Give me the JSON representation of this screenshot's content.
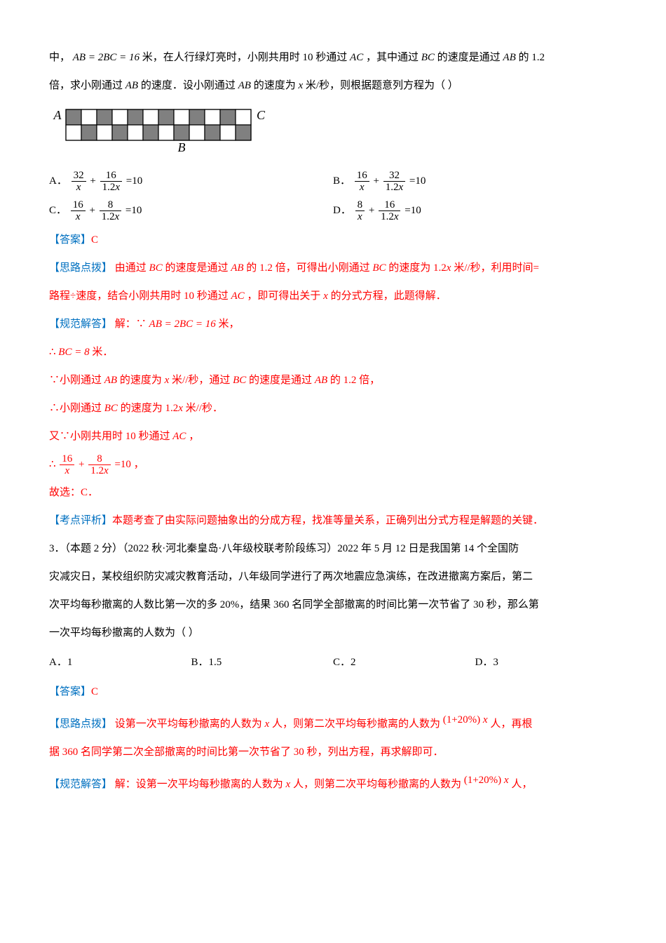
{
  "q2_intro": {
    "line1_pre": "中，",
    "line1_eq": "AB = 2BC = 16",
    "line1_unit": "米，在人行绿灯亮时，小刚共用时 10 秒通过",
    "line1_ac": "AC",
    "line1_mid": "，其中通过",
    "line1_bc": "BC",
    "line1_mid2": "的速度是通过",
    "line1_ab": "AB",
    "line1_mid3": "的",
    "line1_mult": "1.2",
    "line2_pre": "倍，求小刚通过",
    "line2_ab": "AB",
    "line2_mid": "的速度．设小刚通过",
    "line2_ab2": "AB",
    "line2_mid2": "的速度为",
    "line2_x": "x",
    "line2_unit": "米/秒，则根据题意列方程为（          ）"
  },
  "grid": {
    "cols": 12,
    "rows": 2,
    "cell": 22,
    "stroke": "#000000",
    "shaded": "#808080",
    "plain": "#ffffff",
    "b_col": 7,
    "labelA": "A",
    "labelB": "B",
    "labelC": "C",
    "shaded_cells": [
      [
        0,
        0
      ],
      [
        0,
        2
      ],
      [
        0,
        4
      ],
      [
        0,
        6
      ],
      [
        0,
        8
      ],
      [
        0,
        10
      ],
      [
        1,
        1
      ],
      [
        1,
        3
      ],
      [
        1,
        5
      ],
      [
        1,
        7
      ],
      [
        1,
        9
      ],
      [
        1,
        11
      ]
    ]
  },
  "choices2": {
    "A": {
      "label": "A．",
      "n1": "32",
      "d1": "x",
      "op": "+",
      "n2": "16",
      "d2": "1.2x",
      "eq": "=10"
    },
    "B": {
      "label": "B．",
      "n1": "16",
      "d1": "x",
      "op": "+",
      "n2": "32",
      "d2": "1.2x",
      "eq": "=10"
    },
    "C": {
      "label": "C．",
      "n1": "16",
      "d1": "x",
      "op": "+",
      "n2": "8",
      "d2": "1.2x",
      "eq": "=10"
    },
    "D": {
      "label": "D．",
      "n1": "8",
      "d1": "x",
      "op": "+",
      "n2": "16",
      "d2": "1.2x",
      "eq": "=10"
    }
  },
  "ans2": {
    "ans_label": "【答案】",
    "ans_val": "C",
    "hint_label": "【思路点拨】",
    "hint1_pre": "由通过",
    "hint1_bc": "BC",
    "hint1_mid": "的速度是通过",
    "hint1_ab": "AB",
    "hint1_mid2": "的",
    "hint1_mult": "1.2",
    "hint1_mid3": "倍，可得出小刚通过",
    "hint1_bc2": "BC",
    "hint1_mid4": "的速度为",
    "hint1_spd": "1.2x",
    "hint1_unit": "米//秒，利用时间=",
    "hint2": "路程÷速度，结合小刚共用时 10 秒通过",
    "hint2_ac": "AC",
    "hint2_mid": "，即可得出关于",
    "hint2_x": " x ",
    "hint2_end": "的分式方程，此题得解．",
    "sol_label": "【规范解答】",
    "sol1_pre": "解：∵",
    "sol1_eq": " AB = 2BC = 16 ",
    "sol1_unit": "米，",
    "sol2_pre": "∴",
    "sol2_eq": "BC = 8 ",
    "sol2_unit": "米．",
    "sol3_pre": "∵小刚通过",
    "sol3_ab": "AB",
    "sol3_mid": "的速度为",
    "sol3_x": " x ",
    "sol3_unit": "米//秒，通过",
    "sol3_bc": "BC",
    "sol3_mid2": "的速度是通过",
    "sol3_ab2": "AB",
    "sol3_mid3": "的",
    "sol3_mult": "1.2",
    "sol3_end": "倍，",
    "sol4_pre": "∴小刚通过",
    "sol4_bc": "BC",
    "sol4_mid": "的速度为",
    "sol4_spd": "1.2x ",
    "sol4_unit": "米//秒．",
    "sol5_pre": "又∵小刚共用时 10 秒通过",
    "sol5_ac": "AC",
    "sol5_end": "，",
    "sol6_pre": "∴",
    "sol6_n1": "16",
    "sol6_d1": "x",
    "sol6_op": "+",
    "sol6_n2": "8",
    "sol6_d2": "1.2x",
    "sol6_eq": "=10",
    "sol6_comma": " ，",
    "sol7": "故选：C．",
    "review_label": "【考点评析】",
    "review": "本题考查了由实际问题抽象出的分成方程，找准等量关系，正确列出分式方程是解题的关键．"
  },
  "q3": {
    "stem_l1": "3．（本题 2 分）（2022 秋·河北秦皇岛·八年级校联考阶段练习）2022 年 5 月 12 日是我国第 14 个全国防",
    "stem_l2": "灾减灾日，某校组织防灾减灾教育活动，八年级同学进行了两次地震应急演练，在改进撤离方案后，第二",
    "stem_l3": "次平均每秒撤离的人数比第一次的多 20%，结果 360 名同学全部撤离的时间比第一次节省了 30 秒，那么第",
    "stem_l4": "一次平均每秒撤离的人数为（          ）",
    "A": "A．1",
    "B": "B．1.5",
    "C": "C．2",
    "D": "D．3",
    "ans_label": "【答案】",
    "ans_val": "C",
    "hint_label": "【思路点拨】",
    "hint1_pre": "设第一次平均每秒撤离的人数为",
    "hint1_x": " x ",
    "hint1_mid": "人，则第二次平均每秒撤离的人数为",
    "hint1_expr": "(1+20%) x",
    "hint1_end": "人，再根",
    "hint2": "据 360 名同学第二次全部撤离的时间比第一次节省了 30 秒，列出方程，再求解即可．",
    "sol_label": "【规范解答】",
    "sol1_pre": "解：设第一次平均每秒撤离的人数为",
    "sol1_x": " x ",
    "sol1_mid": "人，则第二次平均每秒撤离的人数为",
    "sol1_expr": "(1+20%) x",
    "sol1_end": "人，"
  }
}
